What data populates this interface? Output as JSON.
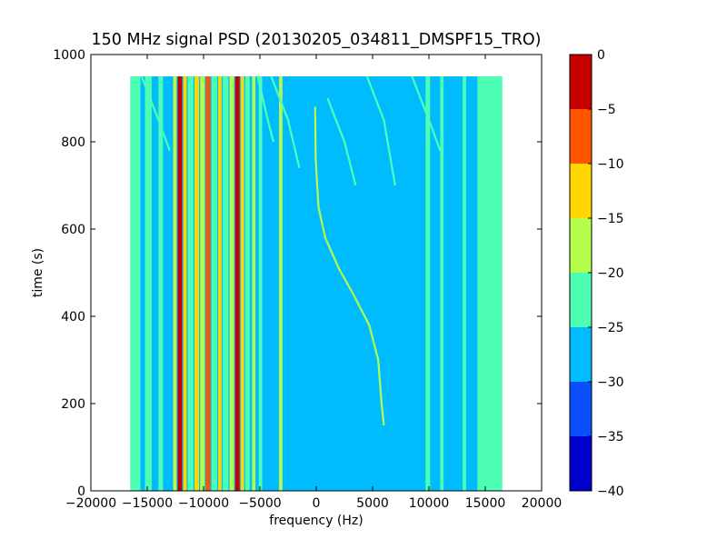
{
  "chart_data": {
    "type": "heatmap",
    "title": "150 MHz signal PSD (20130205_034811_DMSPF15_TRO)",
    "xlabel": "frequency (Hz)",
    "ylabel": "time (s)",
    "xlim": [
      -20000,
      20000
    ],
    "ylim": [
      0,
      1000
    ],
    "xticks": [
      -20000,
      -15000,
      -10000,
      -5000,
      0,
      5000,
      10000,
      15000,
      20000
    ],
    "yticks": [
      0,
      200,
      400,
      600,
      800,
      1000
    ],
    "data_extent": {
      "x": [
        -16500,
        16500
      ],
      "y": [
        0,
        950
      ]
    },
    "background_level": -27.5,
    "colorbar": {
      "min": -40,
      "max": 0,
      "ticks": [
        0,
        -5,
        -10,
        -15,
        -20,
        -25,
        -30,
        -35,
        -40
      ],
      "levels": [
        {
          "range": [
            -40,
            -35
          ],
          "color": "#0000cd"
        },
        {
          "range": [
            -35,
            -30
          ],
          "color": "#0a50ff"
        },
        {
          "range": [
            -30,
            -25
          ],
          "color": "#00bcff"
        },
        {
          "range": [
            -25,
            -20
          ],
          "color": "#4dffb3"
        },
        {
          "range": [
            -20,
            -15
          ],
          "color": "#b4ff4c"
        },
        {
          "range": [
            -15,
            -10
          ],
          "color": "#ffd700"
        },
        {
          "range": [
            -10,
            -5
          ],
          "color": "#ff5500"
        },
        {
          "range": [
            -5,
            0
          ],
          "color": "#c80000"
        }
      ]
    },
    "features": [
      {
        "kind": "band",
        "x0": -16500,
        "x1": -15600,
        "level": -22.5
      },
      {
        "kind": "band",
        "x0": -15200,
        "x1": -14600,
        "level": -22.5
      },
      {
        "kind": "band",
        "x0": -14000,
        "x1": -13600,
        "level": -22.5
      },
      {
        "kind": "band",
        "x0": -12700,
        "x1": -12400,
        "level": -17.5
      },
      {
        "kind": "band",
        "x0": -12300,
        "x1": -11900,
        "level": -2.5
      },
      {
        "kind": "band",
        "x0": -11800,
        "x1": -11500,
        "level": -12.5
      },
      {
        "kind": "band",
        "x0": -11400,
        "x1": -10900,
        "level": -22.5
      },
      {
        "kind": "band",
        "x0": -10800,
        "x1": -10400,
        "level": -12.5
      },
      {
        "kind": "band",
        "x0": -10300,
        "x1": -9900,
        "level": -17.5
      },
      {
        "kind": "band",
        "x0": -9800,
        "x1": -9400,
        "level": -7.5
      },
      {
        "kind": "band",
        "x0": -9300,
        "x1": -8800,
        "level": -22.5
      },
      {
        "kind": "band",
        "x0": -8700,
        "x1": -8400,
        "level": -12.5
      },
      {
        "kind": "band",
        "x0": -8300,
        "x1": -7800,
        "level": -22.5
      },
      {
        "kind": "band",
        "x0": -7700,
        "x1": -7300,
        "level": -17.5
      },
      {
        "kind": "band",
        "x0": -7200,
        "x1": -6800,
        "level": -2.5
      },
      {
        "kind": "band",
        "x0": -6700,
        "x1": -6400,
        "level": -12.5
      },
      {
        "kind": "band",
        "x0": -6300,
        "x1": -5900,
        "level": -22.5
      },
      {
        "kind": "band",
        "x0": -5700,
        "x1": -5400,
        "level": -17.5
      },
      {
        "kind": "band",
        "x0": -5100,
        "x1": -4800,
        "level": -22.5
      },
      {
        "kind": "band",
        "x0": -3300,
        "x1": -3000,
        "level": -17.5
      },
      {
        "kind": "band",
        "x0": 9700,
        "x1": 10100,
        "level": -22.5
      },
      {
        "kind": "band",
        "x0": 11000,
        "x1": 11300,
        "level": -22.5
      },
      {
        "kind": "band",
        "x0": 13000,
        "x1": 13300,
        "level": -22.5
      },
      {
        "kind": "band",
        "x0": 14300,
        "x1": 16500,
        "level": -22.5
      },
      {
        "kind": "line",
        "points": [
          [
            -5200,
            950
          ],
          [
            -4300,
            850
          ],
          [
            -3800,
            800
          ]
        ],
        "level": -22.5
      },
      {
        "kind": "line",
        "points": [
          [
            -15500,
            950
          ],
          [
            -14000,
            850
          ],
          [
            -13000,
            780
          ]
        ],
        "level": -22.5
      },
      {
        "kind": "line",
        "points": [
          [
            -4000,
            950
          ],
          [
            -2500,
            850
          ],
          [
            -1500,
            740
          ]
        ],
        "level": -22.5
      },
      {
        "kind": "line",
        "points": [
          [
            1000,
            900
          ],
          [
            2500,
            800
          ],
          [
            3500,
            700
          ]
        ],
        "level": -22.5
      },
      {
        "kind": "line",
        "points": [
          [
            4500,
            950
          ],
          [
            6000,
            850
          ],
          [
            7000,
            700
          ]
        ],
        "level": -22.5
      },
      {
        "kind": "line",
        "points": [
          [
            8500,
            950
          ],
          [
            10000,
            850
          ],
          [
            11000,
            780
          ]
        ],
        "level": -22.5
      },
      {
        "kind": "line",
        "points": [
          [
            -100,
            880
          ],
          [
            -50,
            760
          ],
          [
            200,
            650
          ],
          [
            800,
            580
          ],
          [
            2000,
            510
          ],
          [
            3300,
            450
          ],
          [
            4700,
            380
          ],
          [
            5500,
            300
          ],
          [
            5800,
            200
          ],
          [
            6000,
            150
          ]
        ],
        "level": -17.5
      }
    ]
  }
}
